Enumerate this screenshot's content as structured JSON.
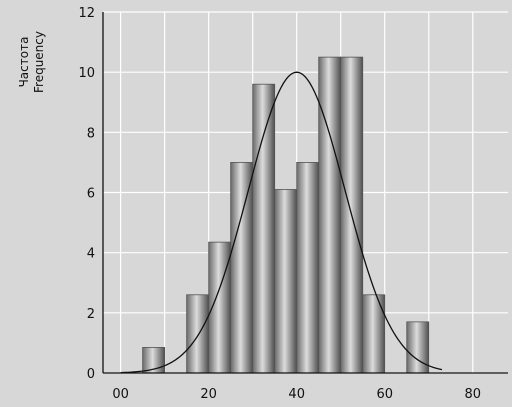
{
  "chart_data": {
    "type": "bar",
    "ylabel_lines": [
      "Частота",
      "Frequency"
    ],
    "xlabel": "",
    "x_ticks": [
      "00",
      "20",
      "40",
      "60",
      "80"
    ],
    "y_ticks": [
      "0",
      "2",
      "4",
      "6",
      "8",
      "10",
      "12"
    ],
    "xlim": [
      -4,
      88
    ],
    "ylim": [
      0,
      12
    ],
    "grid": true,
    "bars": [
      {
        "x0": 5,
        "x1": 10,
        "value": 0.85
      },
      {
        "x0": 15,
        "x1": 20,
        "value": 2.6
      },
      {
        "x0": 20,
        "x1": 25,
        "value": 4.35
      },
      {
        "x0": 25,
        "x1": 30,
        "value": 7.0
      },
      {
        "x0": 30,
        "x1": 35,
        "value": 9.6
      },
      {
        "x0": 35,
        "x1": 40,
        "value": 6.1
      },
      {
        "x0": 40,
        "x1": 45,
        "value": 7.0
      },
      {
        "x0": 45,
        "x1": 50,
        "value": 10.5
      },
      {
        "x0": 50,
        "x1": 55,
        "value": 10.5
      },
      {
        "x0": 55,
        "x1": 60,
        "value": 2.6
      },
      {
        "x0": 65,
        "x1": 70,
        "value": 1.7
      }
    ],
    "curve": {
      "type": "normal",
      "mean": 40,
      "sd": 11,
      "peak": 10,
      "x_start": 0,
      "x_end": 73
    },
    "colors": {
      "background": "#d7d7d7",
      "grid": "#ffffff",
      "bar_edge": "#555555",
      "bar_light": "#d8d8d8",
      "bar_dark": "#5a5a5a",
      "curve": "#111111"
    }
  }
}
